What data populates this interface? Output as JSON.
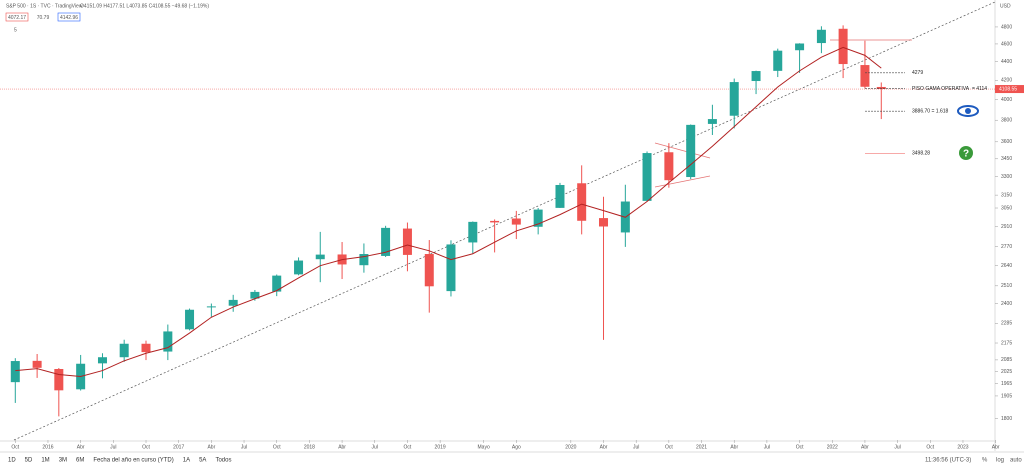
{
  "chart_data": {
    "type": "candlestick",
    "title": "S&P 500 · 1S · TVC · TradingView",
    "ohlc_readout": "O4151.09 H4177.51 L4073.85 C4108.55 −49.68 (−1.19%)",
    "price_boxes": [
      "4072.17",
      "70.79",
      "4142.96"
    ],
    "indicator_count": "5",
    "y_unit": "USD",
    "log_scale": true,
    "up_color": "#26a69a",
    "down_color": "#ef5350",
    "ma_color": "#b22222",
    "x": [
      2015.75,
      2015.917,
      2016.083,
      2016.25,
      2016.417,
      2016.583,
      2016.75,
      2016.917,
      2017.083,
      2017.25,
      2017.417,
      2017.583,
      2017.75,
      2017.917,
      2018.083,
      2018.25,
      2018.417,
      2018.583,
      2018.75,
      2018.917,
      2019.083,
      2019.25,
      2019.417,
      2019.583,
      2019.75,
      2019.917,
      2020.083,
      2020.25,
      2020.417,
      2020.583,
      2020.75,
      2020.917,
      2021.083,
      2021.25,
      2021.417,
      2021.583,
      2021.75,
      2021.917,
      2022.083,
      2022.25,
      2022.375
    ],
    "open": [
      1972,
      2080,
      2038,
      1937,
      2067,
      2099,
      2171,
      2129,
      2251,
      2381,
      2388,
      2431,
      2474,
      2583,
      2683,
      2715,
      2643,
      2705,
      2897,
      2718,
      2477,
      2798,
      2953,
      2971,
      2910,
      3051,
      3245,
      2974,
      2869,
      3105,
      3507,
      3296,
      3765,
      3843,
      4192,
      4300,
      4528,
      4610,
      4778,
      4363,
      4130
    ],
    "high": [
      2094,
      2116,
      2043,
      2111,
      2120,
      2193,
      2188,
      2278,
      2371,
      2401,
      2454,
      2484,
      2582,
      2695,
      2873,
      2801,
      2791,
      2917,
      2941,
      2815,
      2813,
      2949,
      2964,
      3028,
      3050,
      3248,
      3394,
      3137,
      3233,
      3514,
      3588,
      3760,
      3950,
      4218,
      4302,
      4546,
      4608,
      4808,
      4819,
      4637,
      4177
    ],
    "low": [
      1872,
      1993,
      1810,
      1931,
      1991,
      2075,
      2084,
      2084,
      2245,
      2322,
      2352,
      2418,
      2446,
      2577,
      2533,
      2553,
      2594,
      2698,
      2603,
      2347,
      2444,
      2722,
      2729,
      2822,
      2855,
      3050,
      2855,
      2192,
      2767,
      3101,
      3209,
      3279,
      3662,
      3723,
      4057,
      4234,
      4278,
      4495,
      4223,
      4115,
      3811
    ],
    "close": [
      2079,
      2044,
      1932,
      2065,
      2099,
      2171,
      2126,
      2239,
      2364,
      2384,
      2423,
      2472,
      2575,
      2674,
      2714,
      2648,
      2718,
      2902,
      2712,
      2507,
      2784,
      2946,
      2942,
      2926,
      3038,
      3231,
      2954,
      2912,
      3100,
      3500,
      3270,
      3756,
      3811,
      4181,
      4298,
      4523,
      4605,
      4766,
      4374,
      4132,
      4109
    ],
    "ma": [
      2030,
      2040,
      2010,
      2000,
      2030,
      2080,
      2120,
      2150,
      2230,
      2320,
      2380,
      2430,
      2480,
      2560,
      2640,
      2680,
      2700,
      2730,
      2780,
      2740,
      2680,
      2720,
      2800,
      2880,
      2930,
      3000,
      3080,
      3030,
      2980,
      3100,
      3250,
      3400,
      3560,
      3740,
      3930,
      4130,
      4300,
      4450,
      4560,
      4470,
      4330
    ],
    "last_price": 4108.55,
    "annotations": [
      {
        "label": "4279",
        "value": 4279
      },
      {
        "label": "PISO GAMA OPERATIVA",
        "value": 4114,
        "value_label": "= 4114"
      },
      {
        "label": "3886.70 = 1.618",
        "value": 3886.7
      },
      {
        "label": "3498.28",
        "value": 3498.28
      }
    ],
    "xlim": [
      2015.633,
      2023.245
    ],
    "xticks": [
      {
        "value": 2015.75,
        "label": "Oct"
      },
      {
        "value": 2016,
        "label": "2016"
      },
      {
        "value": 2016.25,
        "label": "Abr"
      },
      {
        "value": 2016.5,
        "label": "Jul"
      },
      {
        "value": 2016.75,
        "label": "Oct"
      },
      {
        "value": 2017,
        "label": "2017"
      },
      {
        "value": 2017.25,
        "label": "Abr"
      },
      {
        "value": 2017.5,
        "label": "Jul"
      },
      {
        "value": 2017.75,
        "label": "Oct"
      },
      {
        "value": 2018,
        "label": "2018"
      },
      {
        "value": 2018.25,
        "label": "Abr"
      },
      {
        "value": 2018.5,
        "label": "Jul"
      },
      {
        "value": 2018.75,
        "label": "Oct"
      },
      {
        "value": 2019,
        "label": "2019"
      },
      {
        "value": 2019.333,
        "label": "Mayo"
      },
      {
        "value": 2019.583,
        "label": "Ago"
      },
      {
        "value": 2020,
        "label": "2020"
      },
      {
        "value": 2020.25,
        "label": "Abr"
      },
      {
        "value": 2020.5,
        "label": "Jul"
      },
      {
        "value": 2020.75,
        "label": "Oct"
      },
      {
        "value": 2021,
        "label": "2021"
      },
      {
        "value": 2021.25,
        "label": "Abr"
      },
      {
        "value": 2021.5,
        "label": "Jul"
      },
      {
        "value": 2021.75,
        "label": "Oct"
      },
      {
        "value": 2022,
        "label": "2022"
      },
      {
        "value": 2022.25,
        "label": "Abr"
      },
      {
        "value": 2022.5,
        "label": "Jul"
      },
      {
        "value": 2022.75,
        "label": "Oct"
      },
      {
        "value": 2023,
        "label": "2023"
      },
      {
        "value": 2023.25,
        "label": "Abr"
      }
    ],
    "ylim": [
      1706,
      5135
    ],
    "yticks": [
      1800,
      1905,
      1965,
      2025,
      2085,
      2175,
      2285,
      2400,
      2510,
      2640,
      2770,
      2910,
      3050,
      3150,
      3300,
      3450,
      3600,
      3800,
      4000,
      4200,
      4400,
      4600,
      4800
    ],
    "toolbar": {
      "ranges": [
        "1D",
        "5D",
        "1M",
        "3M",
        "6M",
        "Fecha del año en curso (YTD)",
        "1A",
        "5A",
        "Todos"
      ],
      "time": "11:36:56 (UTC-3)",
      "options": [
        "%",
        "log",
        "auto"
      ]
    }
  }
}
